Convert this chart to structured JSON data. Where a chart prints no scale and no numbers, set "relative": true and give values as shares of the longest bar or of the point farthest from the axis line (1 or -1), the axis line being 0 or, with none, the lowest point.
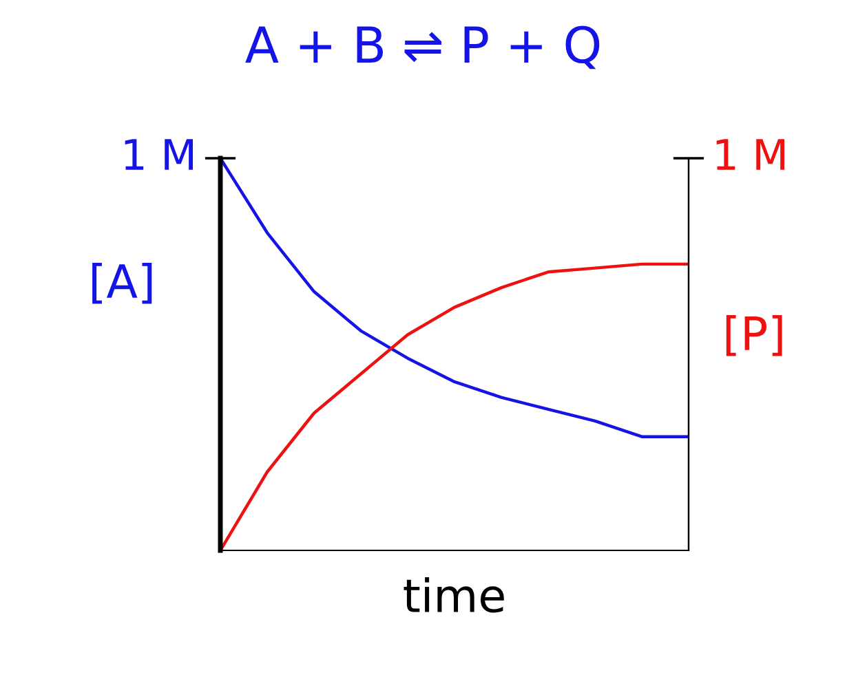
{
  "chart_data": {
    "type": "line",
    "title": "A + B ⇌ P + Q",
    "xlabel": "time",
    "ylabel": "[A]",
    "y2label": "[P]",
    "categories": [
      null,
      null,
      null,
      null,
      null,
      null,
      null,
      null,
      null,
      null,
      null
    ],
    "relative": true,
    "series": [
      {
        "color": "#1414e6",
        "values": [
          1.0,
          0.81,
          0.66,
          0.56,
          0.49,
          0.43,
          0.39,
          0.36,
          0.33,
          0.29,
          0.29
        ]
      },
      {
        "color": "#ee1111",
        "values": [
          0.0,
          0.2,
          0.35,
          0.45,
          0.55,
          0.62,
          0.67,
          0.71,
          0.72,
          0.73,
          0.73
        ]
      }
    ],
    "annotations": [
      "1 M",
      "1 M"
    ],
    "marker": "none",
    "line_style": "solid"
  }
}
